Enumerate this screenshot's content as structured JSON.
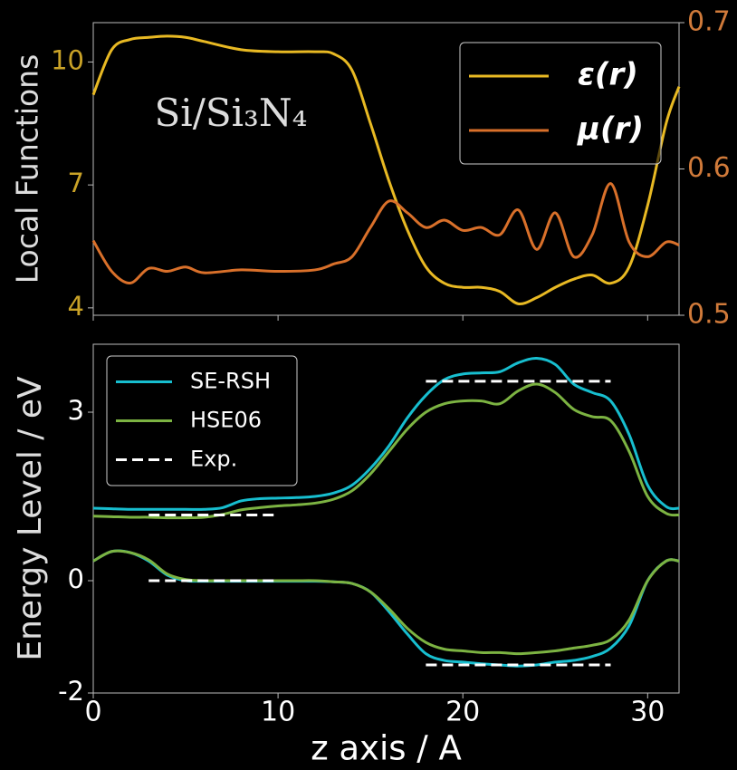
{
  "chart_data": [
    {
      "type": "line",
      "ylabel": "Local Functions",
      "annotation": "Si/Si₃N₄",
      "x": [
        0,
        1,
        2,
        3,
        4,
        5,
        6,
        8,
        10,
        12,
        13,
        14,
        15,
        16,
        17,
        18,
        19,
        20,
        21,
        22,
        23,
        24,
        25,
        26,
        27,
        28,
        29,
        30,
        31,
        31.7
      ],
      "xlim": [
        0,
        31.7
      ],
      "xticks": [
        0,
        10,
        20,
        30
      ],
      "ylim": [
        3.82,
        10.96
      ],
      "yticks": [
        4,
        7,
        10
      ],
      "y2lim": [
        0.5,
        0.7
      ],
      "y2ticks": [
        0.5,
        0.6,
        0.7
      ],
      "legend": "upper right",
      "series": [
        {
          "name": "ε(r)",
          "color": "#e8b923",
          "values": [
            9.2,
            10.3,
            10.55,
            10.6,
            10.63,
            10.6,
            10.5,
            10.3,
            10.25,
            10.25,
            10.2,
            9.8,
            8.5,
            7.1,
            5.9,
            5.0,
            4.6,
            4.5,
            4.5,
            4.4,
            4.1,
            4.25,
            4.5,
            4.7,
            4.8,
            4.6,
            5.0,
            6.5,
            8.5,
            9.4
          ]
        },
        {
          "name": "μ(r)",
          "color": "#d9702a",
          "axis": "y2",
          "values": [
            0.551,
            0.53,
            0.522,
            0.532,
            0.53,
            0.533,
            0.529,
            0.531,
            0.53,
            0.531,
            0.535,
            0.54,
            0.56,
            0.578,
            0.57,
            0.56,
            0.565,
            0.558,
            0.56,
            0.555,
            0.572,
            0.545,
            0.57,
            0.54,
            0.555,
            0.59,
            0.55,
            0.54,
            0.55,
            0.548
          ]
        }
      ]
    },
    {
      "type": "bands",
      "xlabel": "z axis / A",
      "ylabel": "Energy Level / eV",
      "x": [
        0,
        1,
        2,
        3,
        4,
        5,
        6,
        7,
        8,
        9,
        10,
        11,
        12,
        13,
        14,
        15,
        16,
        17,
        18,
        19,
        20,
        21,
        22,
        23,
        24,
        25,
        26,
        27,
        28,
        29,
        30,
        31,
        31.7
      ],
      "xlim": [
        0,
        31.7
      ],
      "xticks": [
        0,
        10,
        20,
        30
      ],
      "ylim": [
        -2,
        4.21
      ],
      "yticks": [
        -2,
        0,
        3
      ],
      "legend": "upper left",
      "series": [
        {
          "name": "SE-RSH",
          "color": "#17becf",
          "bands": [
            [
              1.29,
              1.28,
              1.27,
              1.27,
              1.27,
              1.27,
              1.27,
              1.3,
              1.42,
              1.46,
              1.47,
              1.48,
              1.5,
              1.56,
              1.7,
              2.0,
              2.4,
              2.9,
              3.3,
              3.58,
              3.68,
              3.7,
              3.72,
              3.88,
              3.96,
              3.85,
              3.5,
              3.35,
              3.2,
              2.6,
              1.7,
              1.32,
              1.29
            ],
            [
              0.35,
              0.52,
              0.5,
              0.35,
              0.1,
              0.0,
              -0.01,
              -0.01,
              -0.01,
              -0.01,
              -0.01,
              -0.01,
              -0.01,
              -0.02,
              -0.05,
              -0.2,
              -0.55,
              -0.95,
              -1.3,
              -1.42,
              -1.45,
              -1.48,
              -1.5,
              -1.52,
              -1.5,
              -1.45,
              -1.42,
              -1.35,
              -1.2,
              -0.8,
              0.0,
              0.35,
              0.35
            ]
          ]
        },
        {
          "name": "HSE06",
          "color": "#7cb342",
          "bands": [
            [
              1.15,
              1.14,
              1.13,
              1.13,
              1.12,
              1.12,
              1.13,
              1.18,
              1.26,
              1.3,
              1.33,
              1.35,
              1.38,
              1.45,
              1.6,
              1.9,
              2.3,
              2.7,
              3.0,
              3.15,
              3.2,
              3.2,
              3.15,
              3.38,
              3.5,
              3.35,
              3.05,
              2.92,
              2.85,
              2.3,
              1.5,
              1.2,
              1.17
            ],
            [
              0.35,
              0.52,
              0.5,
              0.37,
              0.12,
              0.02,
              0.0,
              0.0,
              0.0,
              0.0,
              0.0,
              0.0,
              0.0,
              -0.02,
              -0.05,
              -0.2,
              -0.5,
              -0.85,
              -1.1,
              -1.22,
              -1.25,
              -1.28,
              -1.28,
              -1.3,
              -1.28,
              -1.25,
              -1.2,
              -1.15,
              -1.05,
              -0.7,
              0.0,
              0.35,
              0.35
            ]
          ]
        },
        {
          "name": "Exp.",
          "color": "#ffffff",
          "dashed": true,
          "segments": [
            {
              "x": [
                3,
                10
              ],
              "values": [
                1.17,
                1.17
              ]
            },
            {
              "x": [
                3,
                10
              ],
              "values": [
                0,
                0
              ]
            },
            {
              "x": [
                18,
                28
              ],
              "values": [
                3.55,
                3.55
              ]
            },
            {
              "x": [
                18,
                28
              ],
              "values": [
                -1.5,
                -1.5
              ]
            }
          ]
        }
      ]
    }
  ]
}
